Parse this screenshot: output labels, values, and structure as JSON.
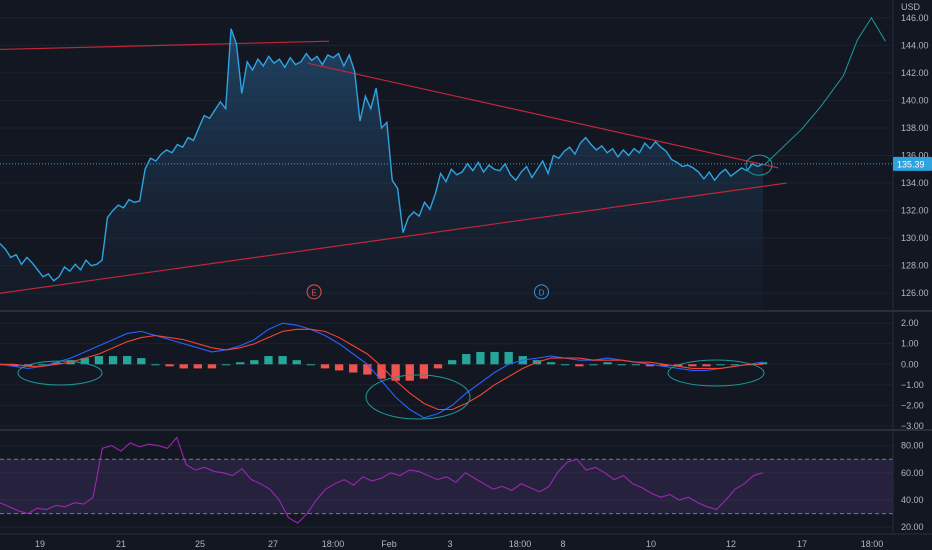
{
  "chart_data": {
    "type": "line",
    "currency": "USD",
    "last_price_label": "135.39",
    "colors": {
      "background": "#131722",
      "price": "#2ea3e0",
      "trendline": "#c2263a",
      "annotation": "#1c9b9b",
      "macd": "#2962ff",
      "signal": "#f44336",
      "hist_pos": "#26a69a",
      "hist_neg": "#ef5350",
      "rsi": "#9c27b0",
      "rsi_band": "#7e57c2"
    },
    "x_ticks": [
      "19",
      "21",
      "25",
      "27",
      "18:00",
      "Feb",
      "3",
      "18:00",
      "8",
      "10",
      "12",
      "17",
      "18:00"
    ],
    "price_pane": {
      "ylim": [
        125,
        147
      ],
      "y_ticks": [
        "126.00",
        "128.00",
        "130.00",
        "132.00",
        "134.00",
        "136.00",
        "138.00",
        "140.00",
        "142.00",
        "144.00",
        "146.00"
      ],
      "price": [
        129.6,
        129.2,
        128.6,
        128.8,
        128.1,
        128.6,
        128.2,
        127.7,
        127.2,
        127.4,
        126.9,
        127.2,
        127.9,
        127.6,
        128.1,
        127.7,
        128.4,
        128.0,
        128.1,
        128.4,
        131.5,
        132.0,
        132.4,
        132.2,
        132.8,
        132.6,
        132.7,
        135.0,
        135.8,
        135.6,
        136.1,
        136.4,
        136.2,
        136.8,
        136.6,
        137.3,
        137.1,
        138.0,
        138.9,
        138.7,
        139.3,
        139.9,
        139.4,
        145.2,
        144.1,
        140.5,
        142.8,
        142.2,
        143.0,
        142.5,
        143.2,
        142.7,
        143.0,
        142.4,
        143.1,
        142.6,
        142.8,
        143.4,
        142.9,
        143.2,
        142.6,
        143.3,
        143.1,
        143.4,
        142.5,
        143.3,
        142.1,
        138.5,
        140.3,
        139.4,
        140.9,
        138.0,
        138.4,
        134.2,
        133.6,
        130.4,
        131.5,
        131.9,
        131.6,
        132.6,
        132.1,
        133.2,
        134.7,
        134.1,
        135.0,
        134.6,
        134.8,
        135.4,
        134.9,
        135.5,
        134.8,
        135.3,
        135.0,
        134.9,
        135.4,
        134.6,
        134.2,
        134.8,
        135.2,
        134.4,
        135.0,
        135.6,
        134.7,
        136.0,
        135.8,
        136.3,
        136.6,
        136.1,
        136.9,
        137.3,
        136.8,
        136.4,
        136.7,
        136.2,
        136.5,
        135.9,
        136.4,
        136.0,
        136.5,
        136.2,
        136.9,
        136.5,
        137.0,
        136.6,
        136.3,
        135.7,
        135.5,
        135.2,
        135.3,
        135.1,
        134.8,
        134.3,
        134.8,
        134.2,
        134.7,
        135.0,
        134.5,
        134.8,
        135.1,
        134.9,
        135.4,
        135.2,
        135.39
      ],
      "trendlines": [
        {
          "x": [
            0,
            0.353
          ],
          "y": [
            143.7,
            144.3
          ]
        },
        {
          "x": [
            0.33,
            0.835
          ],
          "y": [
            142.7,
            135.1
          ]
        },
        {
          "x": [
            0,
            0.844
          ],
          "y": [
            126.0,
            134.0
          ]
        }
      ],
      "projection_x": [
        0.82,
        0.86,
        0.88,
        0.905,
        0.92,
        0.935,
        0.95
      ],
      "projection_y": [
        135.3,
        137.9,
        139.5,
        141.8,
        144.4,
        146.0,
        144.3
      ],
      "event_markers": [
        {
          "label": "E",
          "x": 0.337,
          "y": 126.1
        },
        {
          "label": "D",
          "x": 0.581,
          "y": 126.1
        }
      ]
    },
    "macd_pane": {
      "ylim": [
        -3.1,
        2.3
      ],
      "y_ticks": [
        "2.00",
        "1.00",
        "0.00",
        "−1.00",
        "−2.00",
        "−3.00"
      ],
      "macd": [
        0.0,
        -0.1,
        -0.2,
        -0.1,
        0.1,
        0.3,
        0.6,
        0.9,
        1.2,
        1.5,
        1.6,
        1.4,
        1.2,
        1.0,
        0.8,
        0.6,
        0.7,
        0.9,
        1.2,
        1.7,
        2.0,
        1.9,
        1.7,
        1.4,
        1.0,
        0.5,
        0.0,
        -0.8,
        -1.6,
        -2.2,
        -2.6,
        -2.4,
        -2.0,
        -1.4,
        -0.9,
        -0.4,
        0.0,
        0.2,
        0.3,
        0.4,
        0.3,
        0.2,
        0.2,
        0.3,
        0.2,
        0.1,
        0.0,
        -0.1,
        -0.2,
        -0.3,
        -0.3,
        -0.2,
        -0.1,
        0.0,
        0.1
      ],
      "signal": [
        0.0,
        0.0,
        -0.1,
        -0.1,
        0.0,
        0.1,
        0.3,
        0.5,
        0.8,
        1.1,
        1.3,
        1.4,
        1.3,
        1.2,
        1.0,
        0.8,
        0.7,
        0.8,
        1.0,
        1.3,
        1.6,
        1.7,
        1.7,
        1.6,
        1.3,
        0.9,
        0.5,
        -0.1,
        -0.8,
        -1.4,
        -1.9,
        -2.2,
        -2.2,
        -1.9,
        -1.5,
        -1.0,
        -0.6,
        -0.2,
        0.1,
        0.3,
        0.3,
        0.3,
        0.2,
        0.2,
        0.2,
        0.1,
        0.1,
        0.0,
        -0.1,
        -0.2,
        -0.2,
        -0.2,
        -0.1,
        0.0,
        0.0
      ],
      "histogram": [
        0.0,
        -0.1,
        -0.1,
        0.0,
        0.1,
        0.2,
        0.3,
        0.4,
        0.4,
        0.4,
        0.3,
        0.0,
        -0.1,
        -0.2,
        -0.2,
        -0.2,
        0.0,
        0.1,
        0.2,
        0.4,
        0.4,
        0.2,
        0.0,
        -0.2,
        -0.3,
        -0.4,
        -0.5,
        -0.7,
        -0.8,
        -0.8,
        -0.7,
        -0.2,
        0.2,
        0.5,
        0.6,
        0.6,
        0.6,
        0.4,
        0.2,
        0.1,
        0.0,
        -0.1,
        0.0,
        0.1,
        0.0,
        0.0,
        -0.1,
        -0.1,
        -0.1,
        -0.1,
        -0.1,
        0.0,
        0.0,
        0.0,
        0.1
      ]
    },
    "rsi_pane": {
      "ylim": [
        15,
        90
      ],
      "y_ticks": [
        "80.00",
        "60.00",
        "40.00",
        "20.00"
      ],
      "band": [
        30,
        70
      ],
      "rsi": [
        38,
        35,
        32,
        30,
        34,
        33,
        36,
        35,
        38,
        37,
        42,
        78,
        80,
        76,
        82,
        79,
        81,
        80,
        78,
        86,
        66,
        62,
        64,
        61,
        60,
        58,
        63,
        55,
        52,
        48,
        40,
        27,
        23,
        30,
        40,
        48,
        52,
        55,
        51,
        57,
        54,
        56,
        60,
        58,
        62,
        61,
        58,
        55,
        57,
        53,
        60,
        56,
        52,
        48,
        50,
        47,
        52,
        49,
        46,
        50,
        61,
        68,
        70,
        62,
        64,
        60,
        55,
        58,
        52,
        49,
        45,
        42,
        44,
        40,
        42,
        38,
        35,
        33,
        40,
        48,
        52,
        58,
        60
      ]
    },
    "annotations_visible": true
  }
}
